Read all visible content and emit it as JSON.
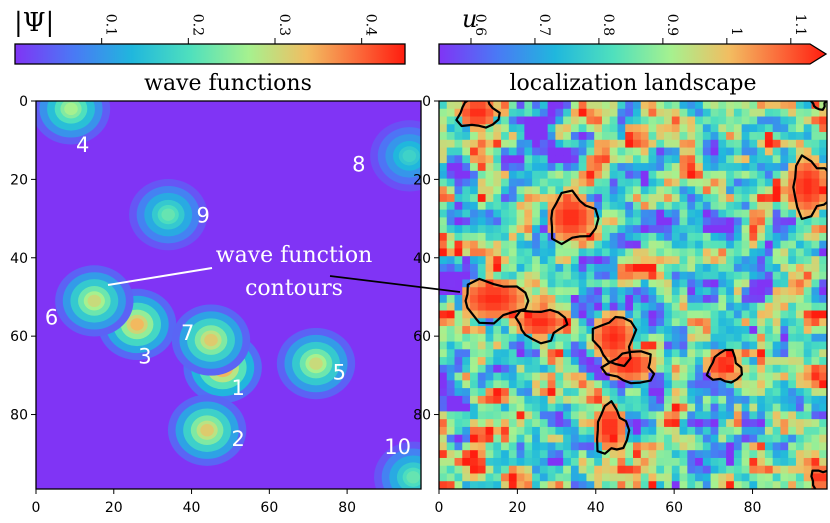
{
  "chart_data": [
    {
      "type": "heatmap",
      "title": "wave functions",
      "colorbar": {
        "label": "|Ψ|",
        "ticks": [
          0.1,
          0.2,
          0.3,
          0.4
        ],
        "range": [
          0.0,
          0.45
        ],
        "colormap": "rainbow"
      },
      "xlim": [
        0,
        99
      ],
      "ylim": [
        0,
        99
      ],
      "xticks": [
        0,
        20,
        40,
        60,
        80
      ],
      "yticks": [
        0,
        20,
        40,
        60,
        80
      ],
      "y_inverted": true,
      "background_value": 0.0,
      "labels": [
        {
          "text": "1",
          "x": 52,
          "y": 73
        },
        {
          "text": "2",
          "x": 52,
          "y": 86
        },
        {
          "text": "3",
          "x": 28,
          "y": 65
        },
        {
          "text": "4",
          "x": 12,
          "y": 11
        },
        {
          "text": "5",
          "x": 78,
          "y": 69
        },
        {
          "text": "6",
          "x": 4,
          "y": 55
        },
        {
          "text": "7",
          "x": 39,
          "y": 59
        },
        {
          "text": "8",
          "x": 83,
          "y": 16
        },
        {
          "text": "9",
          "x": 43,
          "y": 29
        },
        {
          "text": "10",
          "x": 93,
          "y": 88
        }
      ],
      "peaks": [
        {
          "x": 48,
          "y": 68,
          "amp": 0.38
        },
        {
          "x": 44,
          "y": 84,
          "amp": 0.32
        },
        {
          "x": 26,
          "y": 57,
          "amp": 0.34
        },
        {
          "x": 9,
          "y": 2,
          "amp": 0.27
        },
        {
          "x": 72,
          "y": 67,
          "amp": 0.3
        },
        {
          "x": 15,
          "y": 51,
          "amp": 0.3
        },
        {
          "x": 45,
          "y": 61,
          "amp": 0.32
        },
        {
          "x": 96,
          "y": 14,
          "amp": 0.18
        },
        {
          "x": 34,
          "y": 29,
          "amp": 0.22
        },
        {
          "x": 97,
          "y": 96,
          "amp": 0.22
        }
      ],
      "annotation": {
        "text_lines": [
          "wave function",
          "contours"
        ]
      }
    },
    {
      "type": "heatmap",
      "title": "localization landscape",
      "colorbar": {
        "label": "u",
        "ticks": [
          0.6,
          0.7,
          0.8,
          0.9,
          1,
          1.1
        ],
        "range": [
          0.55,
          1.13
        ],
        "colormap": "rainbow",
        "extend": "max"
      },
      "xlim": [
        0,
        99
      ],
      "ylim": [
        0,
        99
      ],
      "xticks": [
        0,
        20,
        40,
        60,
        80
      ],
      "yticks": [
        0,
        20,
        40,
        60,
        80
      ],
      "y_inverted": true,
      "contours": [
        {
          "x": 10,
          "y": 3,
          "rx": 5,
          "ry": 4
        },
        {
          "x": 34,
          "y": 30,
          "rx": 6,
          "ry": 6
        },
        {
          "x": 14,
          "y": 51,
          "rx": 8,
          "ry": 5
        },
        {
          "x": 26,
          "y": 57,
          "rx": 6,
          "ry": 4
        },
        {
          "x": 45,
          "y": 61,
          "rx": 5,
          "ry": 6
        },
        {
          "x": 49,
          "y": 68,
          "rx": 6,
          "ry": 4
        },
        {
          "x": 73,
          "y": 68,
          "rx": 4,
          "ry": 4
        },
        {
          "x": 44,
          "y": 84,
          "rx": 4,
          "ry": 6
        },
        {
          "x": 95,
          "y": 22,
          "rx": 5,
          "ry": 7
        },
        {
          "x": 98,
          "y": 97,
          "rx": 3,
          "ry": 3
        },
        {
          "x": 97,
          "y": 0,
          "rx": 2,
          "ry": 2
        }
      ]
    }
  ]
}
